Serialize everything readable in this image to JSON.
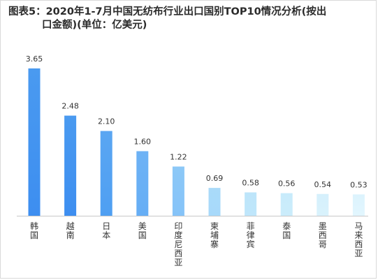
{
  "title_line1": "图表5：2020年1-7月中国无纺布行业出口国别TOP10情况分析(按出",
  "title_line2": "口金额)(单位：亿美元)",
  "chart_data": {
    "type": "bar",
    "title": "图表5：2020年1-7月中国无纺布行业出口国别TOP10情况分析(按出口金额)(单位：亿美元)",
    "categories": [
      "韩国",
      "越南",
      "日本",
      "美国",
      "印度尼西亚",
      "柬埔寨",
      "菲律宾",
      "泰国",
      "墨西哥",
      "马来西亚"
    ],
    "values": [
      3.65,
      2.48,
      2.1,
      1.6,
      1.22,
      0.69,
      0.58,
      0.56,
      0.54,
      0.53
    ],
    "value_labels": [
      "3.65",
      "2.48",
      "2.10",
      "1.60",
      "1.22",
      "0.69",
      "0.58",
      "0.56",
      "0.54",
      "0.53"
    ],
    "ylim": [
      0,
      3.65
    ],
    "grid": false,
    "legend": "none",
    "bar_colors_top": [
      "#4a9af0",
      "#4a9af0",
      "#5aa6f2",
      "#6db2f5",
      "#8cc8f7",
      "#a9daf9",
      "#bde5fa",
      "#c8ebfb",
      "#d5f0fc",
      "#dcf3fd"
    ],
    "bar_colors_bottom": [
      "#3d8ef0",
      "#3d8ef0",
      "#4f9ff2",
      "#66aef5",
      "#85c3f8",
      "#a7d9fa",
      "#bfe6fb",
      "#cbecfb",
      "#d9f2fc",
      "#e2f6fe"
    ],
    "axis_color": "#c8c8c8"
  }
}
